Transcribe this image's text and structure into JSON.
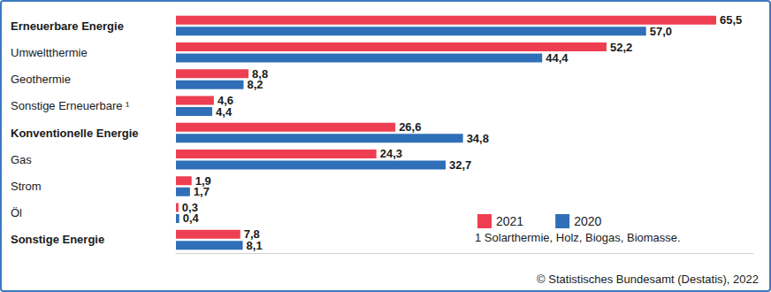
{
  "chart_data": {
    "type": "bar",
    "orientation": "horizontal",
    "categories": [
      "Erneuerbare Energie",
      "Umweltthermie",
      "Geothermie",
      "Sonstige Erneuerbare ¹",
      "Konventionelle Energie",
      "Gas",
      "Strom",
      "Öl",
      "Sonstige Energie"
    ],
    "series": [
      {
        "name": "2021",
        "color": "#ee3f52",
        "values": [
          65.5,
          52.2,
          8.8,
          4.6,
          26.6,
          24.3,
          1.9,
          0.3,
          7.8
        ],
        "value_labels": [
          "65,5",
          "52,2",
          "8,8",
          "4,6",
          "26,6",
          "24,3",
          "1,9",
          "0,3",
          "7,8"
        ]
      },
      {
        "name": "2020",
        "color": "#2f6fb7",
        "values": [
          57.0,
          44.4,
          8.2,
          4.4,
          34.8,
          32.7,
          1.7,
          0.4,
          8.1
        ],
        "value_labels": [
          "57,0",
          "44,4",
          "8,2",
          "4,4",
          "34,8",
          "32,7",
          "1,7",
          "0,4",
          "8,1"
        ]
      }
    ],
    "xlim": [
      0,
      70
    ],
    "grid": false,
    "legend": "lower right",
    "data_labels": true,
    "tick_labels": "y",
    "annotations": [
      "1 Solarthermie, Holz, Biogas, Biomasse."
    ],
    "source": "© Statistisches Bundesamt (Destatis), 2022"
  }
}
